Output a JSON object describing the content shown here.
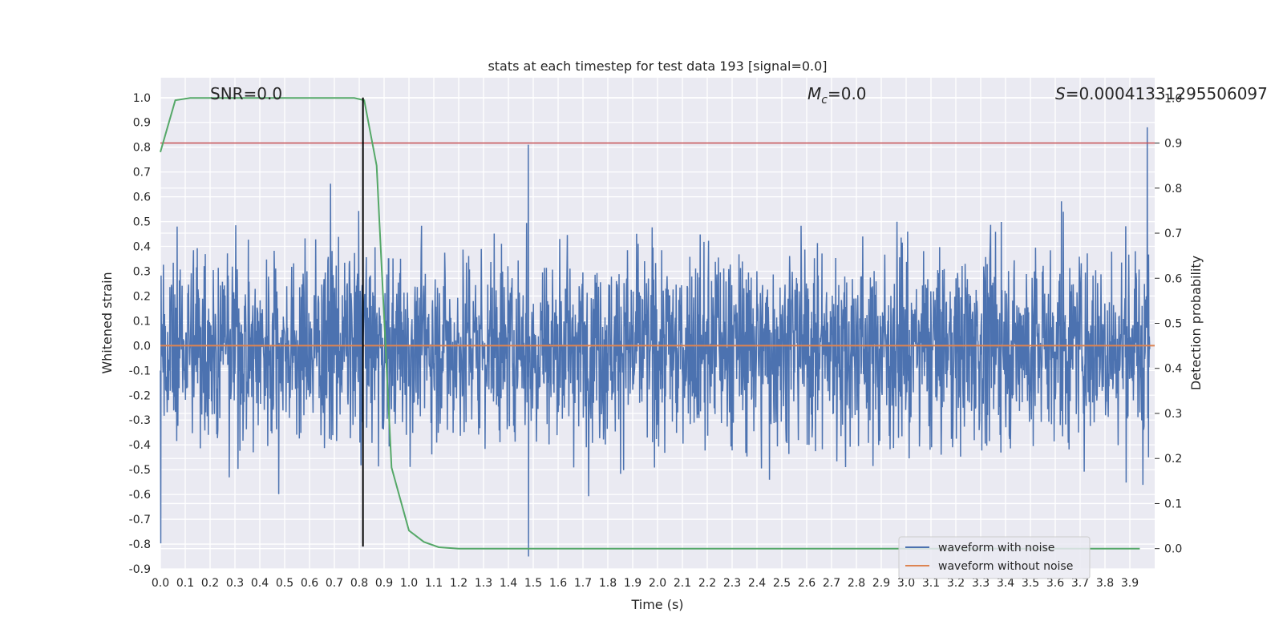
{
  "chart_data": {
    "type": "line",
    "title": "stats at each timestep for test data 193 [signal=0.0]",
    "xlabel": "Time (s)",
    "ylabel": "Whitened strain",
    "y2label": "Detection probability",
    "xlim": [
      0.0,
      4.0
    ],
    "ylim": [
      -0.9,
      1.08
    ],
    "y2lim": [
      -0.045,
      1.045
    ],
    "xticks": [
      0.0,
      0.1,
      0.2,
      0.3,
      0.4,
      0.5,
      0.6,
      0.7,
      0.8,
      0.9,
      1.0,
      1.1,
      1.2,
      1.3,
      1.4,
      1.5,
      1.6,
      1.7,
      1.8,
      1.9,
      2.0,
      2.1,
      2.2,
      2.3,
      2.4,
      2.5,
      2.6,
      2.7,
      2.8,
      2.9,
      3.0,
      3.1,
      3.2,
      3.3,
      3.4,
      3.5,
      3.6,
      3.7,
      3.8,
      3.9
    ],
    "yticks": [
      1.0,
      0.9,
      0.8,
      0.7,
      0.6,
      0.5,
      0.4,
      0.3,
      0.2,
      0.1,
      0.0,
      -0.1,
      -0.2,
      -0.3,
      -0.4,
      -0.5,
      -0.6,
      -0.7,
      -0.8,
      -0.9
    ],
    "y2ticks": [
      1.0,
      0.9,
      0.8,
      0.7,
      0.6,
      0.5,
      0.4,
      0.3,
      0.2,
      0.1,
      0.0
    ],
    "grid": true,
    "legend_placement": "lower-right",
    "annotations": {
      "snr": "SNR=0.0",
      "mc_symbol": "M",
      "mc_sub": "c",
      "mc_value": "=0.0",
      "s_symbol": "S",
      "s_value": "=0.00041331295506097"
    },
    "series": [
      {
        "name": "waveform with noise",
        "color": "#4c72b0",
        "axis": "left",
        "description": "noise waveform, mostly within -0.6 to 0.6, peaks near 0.88 at 3.97 s"
      },
      {
        "name": "waveform without noise",
        "color": "#dd8452",
        "axis": "left",
        "y": 0.0
      }
    ],
    "detection_probability": {
      "color": "#55a868",
      "axis": "right",
      "x": [
        0.0,
        0.06,
        0.12,
        0.18,
        0.24,
        0.3,
        0.36,
        0.42,
        0.48,
        0.54,
        0.6,
        0.66,
        0.72,
        0.78,
        0.82,
        0.87,
        0.93,
        1.0,
        1.06,
        1.12,
        1.2,
        1.5,
        2.0,
        2.5,
        3.0,
        3.5,
        3.94
      ],
      "y": [
        0.88,
        0.995,
        1.0,
        1.0,
        1.0,
        1.0,
        1.0,
        1.0,
        1.0,
        1.0,
        1.0,
        1.0,
        1.0,
        1.0,
        0.995,
        0.85,
        0.18,
        0.04,
        0.015,
        0.003,
        0.0,
        0.0,
        0.0,
        0.0,
        0.0,
        0.0,
        0.0
      ]
    },
    "threshold": {
      "color": "#c44e52",
      "axis": "right",
      "y": 0.9
    },
    "marker_line": {
      "color": "#000000",
      "x": 0.815,
      "y_range": [
        -0.81,
        1.0
      ]
    }
  }
}
